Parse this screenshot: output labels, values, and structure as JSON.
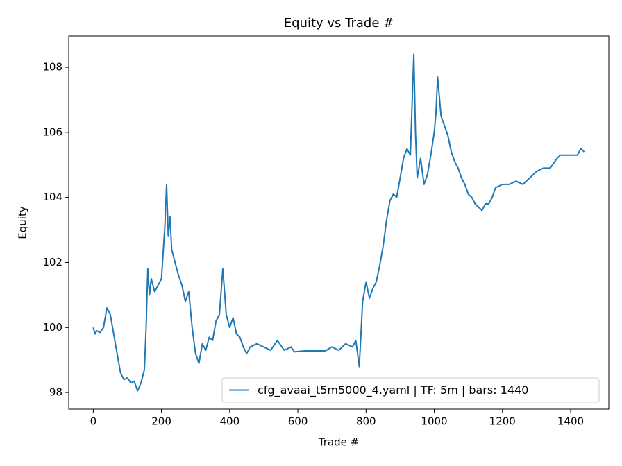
{
  "chart_data": {
    "type": "line",
    "title": "Equity vs Trade #",
    "x_label": "Trade #",
    "y_label": "Equity",
    "x": [
      0,
      5,
      10,
      20,
      30,
      40,
      50,
      60,
      70,
      80,
      90,
      100,
      110,
      120,
      130,
      140,
      150,
      155,
      160,
      165,
      170,
      180,
      190,
      200,
      210,
      215,
      220,
      225,
      230,
      240,
      250,
      260,
      270,
      280,
      290,
      300,
      310,
      320,
      330,
      340,
      350,
      360,
      370,
      380,
      390,
      400,
      410,
      420,
      430,
      440,
      450,
      460,
      480,
      500,
      520,
      540,
      560,
      580,
      590,
      620,
      680,
      700,
      720,
      740,
      760,
      770,
      780,
      790,
      800,
      810,
      820,
      830,
      840,
      850,
      860,
      870,
      880,
      890,
      900,
      910,
      920,
      930,
      940,
      945,
      950,
      960,
      970,
      980,
      990,
      1000,
      1005,
      1010,
      1020,
      1030,
      1040,
      1050,
      1060,
      1070,
      1080,
      1090,
      1100,
      1110,
      1120,
      1140,
      1150,
      1160,
      1170,
      1180,
      1200,
      1220,
      1240,
      1260,
      1280,
      1300,
      1320,
      1340,
      1360,
      1370,
      1400,
      1420,
      1430,
      1440
    ],
    "series": [
      {
        "name": "cfg_avaai_t5m5000_4.yaml | TF: 5m | bars: 1440",
        "color": "#1f77b4",
        "values": [
          100.0,
          99.8,
          99.9,
          99.85,
          100.0,
          100.6,
          100.4,
          99.8,
          99.2,
          98.6,
          98.4,
          98.45,
          98.3,
          98.35,
          98.05,
          98.3,
          98.7,
          100.0,
          101.8,
          101.0,
          101.5,
          101.1,
          101.3,
          101.5,
          103.1,
          104.4,
          102.8,
          103.4,
          102.4,
          102.0,
          101.6,
          101.3,
          100.8,
          101.1,
          100.0,
          99.2,
          98.9,
          99.5,
          99.3,
          99.7,
          99.6,
          100.2,
          100.4,
          101.8,
          100.4,
          100.0,
          100.3,
          99.8,
          99.7,
          99.4,
          99.2,
          99.4,
          99.5,
          99.4,
          99.3,
          99.6,
          99.3,
          99.4,
          99.25,
          99.28,
          99.28,
          99.4,
          99.3,
          99.5,
          99.4,
          99.6,
          98.8,
          100.8,
          101.4,
          100.9,
          101.2,
          101.4,
          101.9,
          102.5,
          103.3,
          103.9,
          104.1,
          104.0,
          104.6,
          105.2,
          105.5,
          105.3,
          108.4,
          106.0,
          104.6,
          105.2,
          104.4,
          104.7,
          105.3,
          106.0,
          106.6,
          107.7,
          106.5,
          106.2,
          105.9,
          105.4,
          105.1,
          104.9,
          104.6,
          104.4,
          104.1,
          104.0,
          103.8,
          103.6,
          103.8,
          103.8,
          104.0,
          104.3,
          104.4,
          104.4,
          104.5,
          104.4,
          104.6,
          104.8,
          104.9,
          104.9,
          105.2,
          105.3,
          105.3,
          105.3,
          105.5,
          105.4
        ]
      }
    ],
    "xlim": [
      -72,
      1512
    ],
    "ylim": [
      97.49,
      108.96
    ],
    "xticks": [
      0,
      200,
      400,
      600,
      800,
      1000,
      1200,
      1400
    ],
    "yticks": [
      98,
      100,
      102,
      104,
      106,
      108
    ],
    "legend": "lower right"
  }
}
